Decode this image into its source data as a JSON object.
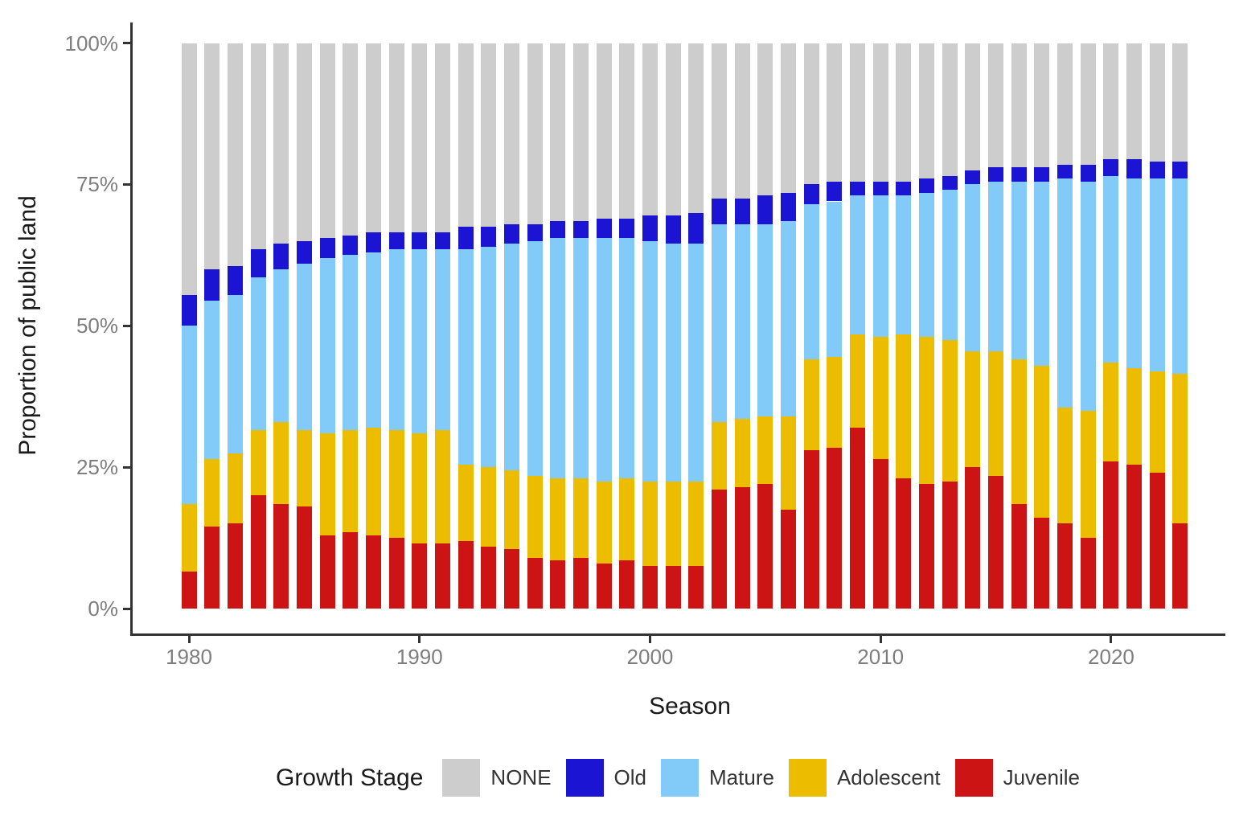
{
  "chart_data": {
    "type": "bar",
    "stacked": true,
    "units": "percent",
    "xlabel": "Season",
    "ylabel": "Proportion of public land",
    "legend_title": "Growth Stage",
    "legend_position": "bottom",
    "legend_order": [
      "NONE",
      "Old",
      "Mature",
      "Adolescent",
      "Juvenile"
    ],
    "grid": "off",
    "ylim": [
      0,
      100
    ],
    "y_ticks": [
      {
        "label": "0%",
        "value": 0
      },
      {
        "label": "25%",
        "value": 25
      },
      {
        "label": "50%",
        "value": 50
      },
      {
        "label": "75%",
        "value": 75
      },
      {
        "label": "100%",
        "value": 100
      }
    ],
    "x_ticks": [
      {
        "label": "1980",
        "value": 1980
      },
      {
        "label": "1990",
        "value": 1990
      },
      {
        "label": "2000",
        "value": 2000
      },
      {
        "label": "2010",
        "value": 2010
      },
      {
        "label": "2020",
        "value": 2020
      }
    ],
    "x": [
      1980,
      1981,
      1982,
      1983,
      1984,
      1985,
      1986,
      1987,
      1988,
      1989,
      1990,
      1991,
      1992,
      1993,
      1994,
      1995,
      1996,
      1997,
      1998,
      1999,
      2000,
      2001,
      2002,
      2003,
      2004,
      2005,
      2006,
      2007,
      2008,
      2009,
      2010,
      2011,
      2012,
      2013,
      2014,
      2015,
      2016,
      2017,
      2018,
      2019,
      2020,
      2021,
      2022,
      2023
    ],
    "series": [
      {
        "name": "Juvenile",
        "color": "#CC1414",
        "values": [
          6.5,
          14.5,
          15,
          20,
          18.5,
          18,
          13,
          13.5,
          13,
          12.5,
          11.5,
          11.5,
          12,
          11,
          10.5,
          9,
          8.5,
          9,
          8,
          8.5,
          7.5,
          7.5,
          7.5,
          21,
          21.5,
          22,
          17.5,
          28,
          28.5,
          32,
          26.5,
          23,
          22,
          22.5,
          25,
          23.5,
          18.5,
          16,
          15,
          12.5,
          26,
          25.5,
          24,
          15
        ]
      },
      {
        "name": "Adolescent",
        "color": "#EBBC00",
        "values": [
          12,
          12,
          12.5,
          11.5,
          14.5,
          13.5,
          18,
          18,
          19,
          19,
          19.5,
          20,
          13.5,
          14,
          14,
          14.5,
          14.5,
          14,
          14.5,
          14.5,
          15,
          15,
          15,
          12,
          12,
          12,
          16.5,
          16,
          16,
          16.5,
          21.5,
          25.5,
          26,
          25,
          20.5,
          22,
          25.5,
          27,
          20.5,
          22.5,
          17.5,
          17,
          18,
          26.5
        ]
      },
      {
        "name": "Mature",
        "color": "#82CBF8",
        "values": [
          31.5,
          28,
          28,
          27,
          27,
          29.5,
          31,
          31,
          31,
          32,
          32.5,
          32,
          38,
          39,
          40,
          41.5,
          42.5,
          42.5,
          43,
          42.5,
          42.5,
          42,
          42,
          35,
          34.5,
          34,
          34.5,
          27.5,
          27.5,
          24.5,
          25,
          24.5,
          25.5,
          26.5,
          29.5,
          30,
          31.5,
          32.5,
          40.5,
          40.5,
          33,
          33.5,
          34,
          34.5
        ]
      },
      {
        "name": "Old",
        "color": "#1B14D2",
        "values": [
          5.5,
          5.5,
          5,
          5,
          4.5,
          4,
          3.5,
          3.5,
          3.5,
          3,
          3,
          3,
          4,
          3.5,
          3.5,
          3,
          3,
          3,
          3.5,
          3.5,
          4.5,
          5,
          5.5,
          4.5,
          4.5,
          5,
          5,
          3.5,
          3.5,
          2.5,
          2.5,
          2.5,
          2.5,
          2.5,
          2.5,
          2.5,
          2.5,
          2.5,
          2.5,
          3,
          3,
          3.5,
          3,
          3
        ]
      },
      {
        "name": "NONE",
        "color": "#CDCDCD",
        "values": [
          44.5,
          40,
          39.5,
          36.5,
          35.5,
          35,
          34.5,
          34,
          33.5,
          33.5,
          33.5,
          33.5,
          32.5,
          32.5,
          32,
          32,
          31.5,
          31.5,
          31,
          31,
          30.5,
          30.5,
          30,
          27.5,
          27.5,
          27,
          26.5,
          25,
          24.5,
          24.5,
          24.5,
          24.5,
          24,
          23.5,
          22.5,
          22,
          22,
          22,
          21.5,
          21.5,
          20.5,
          20.5,
          21,
          21
        ]
      }
    ]
  }
}
